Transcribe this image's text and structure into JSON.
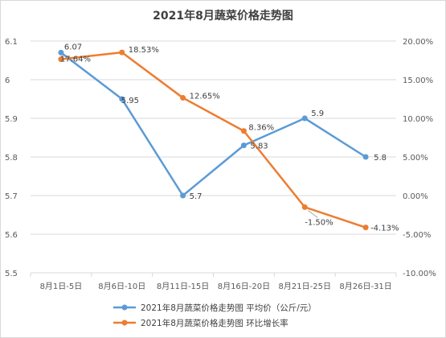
{
  "chart_data": {
    "type": "line",
    "title": "2021年8月蔬菜价格走势图",
    "categories": [
      "8月1日-5日",
      "8月6日-10日",
      "8月11日-15日",
      "8月16日-20日",
      "8月21日-25日",
      "8月26日-31日"
    ],
    "series": [
      {
        "name": "2021年8月蔬菜价格走势图  平均价（公斤/元）",
        "axis": "left",
        "color": "#5b9bd5",
        "values": [
          6.07,
          5.95,
          5.7,
          5.83,
          5.9,
          5.8
        ],
        "labels": [
          "6.07",
          "5.95",
          "5.7",
          "5.83",
          "5.9",
          "5.8"
        ]
      },
      {
        "name": "2021年8月蔬菜价格走势图  环比增长率",
        "axis": "right",
        "color": "#ed7d31",
        "values": [
          17.64,
          18.53,
          12.65,
          8.36,
          -1.5,
          -4.13
        ],
        "labels": [
          "17.64%",
          "18.53%",
          "12.65%",
          "8.36%",
          "-1.50%",
          "-4.13%"
        ]
      }
    ],
    "y_left": {
      "min": 5.5,
      "max": 6.1,
      "step": 0.1,
      "ticks": [
        "5.5",
        "5.6",
        "5.7",
        "5.8",
        "5.9",
        "6",
        "6.1"
      ]
    },
    "y_right": {
      "min": -10,
      "max": 20,
      "step": 5,
      "ticks": [
        "-10.00%",
        "-5.00%",
        "0.00%",
        "5.00%",
        "10.00%",
        "15.00%",
        "20.00%"
      ]
    },
    "grid": true,
    "legend_position": "bottom"
  }
}
